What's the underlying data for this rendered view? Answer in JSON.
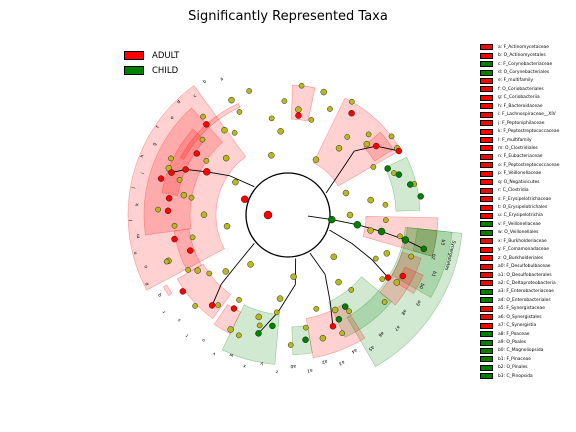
{
  "title": "Significantly Represented Taxa",
  "colors": {
    "ADULT": "#ff0000",
    "CHILD": "#008000",
    "node_default": "#b8b820"
  },
  "class_legend": [
    {
      "name": "ADULT",
      "color": "#ff0000"
    },
    {
      "name": "CHILD",
      "color": "#008000"
    }
  ],
  "taxa_legend": [
    {
      "label": "a: F_Actinomycetaceae",
      "group": "ADULT"
    },
    {
      "label": "b: O_Actinomycetales",
      "group": "ADULT"
    },
    {
      "label": "c: F_Corynebacteriaceae",
      "group": "CHILD"
    },
    {
      "label": "d: O_Corynebacteriales",
      "group": "CHILD"
    },
    {
      "label": "e: F_multifamily",
      "group": "ADULT"
    },
    {
      "label": "f: O_Coriobacteriales",
      "group": "ADULT"
    },
    {
      "label": "g: C_Coriobacteriia",
      "group": "ADULT"
    },
    {
      "label": "h: F_Bacteroidaceae",
      "group": "ADULT"
    },
    {
      "label": "i: F_Lachnospiraceae__XIV",
      "group": "ADULT"
    },
    {
      "label": "j: F_Peptoniphilaceae",
      "group": "ADULT"
    },
    {
      "label": "k: F_Peptostreptococcaceae",
      "group": "ADULT"
    },
    {
      "label": "l: F_multifamily",
      "group": "ADULT"
    },
    {
      "label": "m: O_Clostridiales",
      "group": "ADULT"
    },
    {
      "label": "n: F_Eubacteriaceae",
      "group": "ADULT"
    },
    {
      "label": "o: F_Peptostreptococcaceae",
      "group": "ADULT"
    },
    {
      "label": "p: F_Veillonellaceae",
      "group": "ADULT"
    },
    {
      "label": "q: O_Negativicutes",
      "group": "ADULT"
    },
    {
      "label": "r: C_Clostridia",
      "group": "ADULT"
    },
    {
      "label": "s: F_Erysipelotrichaceae",
      "group": "ADULT"
    },
    {
      "label": "t: O_Erysipelotrichales",
      "group": "ADULT"
    },
    {
      "label": "u: C_Erysipelotrichia",
      "group": "ADULT"
    },
    {
      "label": "v: F_Veillonellaceae",
      "group": "CHILD"
    },
    {
      "label": "w: O_Veillonellales",
      "group": "CHILD"
    },
    {
      "label": "x: F_Burkholderiaceae",
      "group": "ADULT"
    },
    {
      "label": "y: F_Comamonadaceae",
      "group": "ADULT"
    },
    {
      "label": "z: O_Burkholderiales",
      "group": "ADULT"
    },
    {
      "label": "a0: F_Desulfobulbaceae",
      "group": "ADULT"
    },
    {
      "label": "a1: O_Desulfobacterales",
      "group": "ADULT"
    },
    {
      "label": "a2: C_Deltaproteobacteria",
      "group": "ADULT"
    },
    {
      "label": "a3: F_Enterobacteriaceae",
      "group": "CHILD"
    },
    {
      "label": "a4: O_Enterobacteriales",
      "group": "CHILD"
    },
    {
      "label": "a5: F_Synergistaceae",
      "group": "ADULT"
    },
    {
      "label": "a6: O_Synergistales",
      "group": "ADULT"
    },
    {
      "label": "a7: C_Synergistia",
      "group": "ADULT"
    },
    {
      "label": "a8: F_Poaceae",
      "group": "CHILD"
    },
    {
      "label": "a9: O_Poales",
      "group": "CHILD"
    },
    {
      "label": "b0: C_Magnoliopsida",
      "group": "CHILD"
    },
    {
      "label": "b1: F_Pinaceae",
      "group": "CHILD"
    },
    {
      "label": "b2: O_Pinales",
      "group": "CHILD"
    },
    {
      "label": "b3: C_Pinopsida",
      "group": "CHILD"
    }
  ],
  "clade_labels": [
    {
      "id": "a",
      "group": "ADULT"
    },
    {
      "id": "b",
      "group": "ADULT"
    },
    {
      "id": "c",
      "group": "CHILD"
    },
    {
      "id": "d",
      "group": "CHILD"
    },
    {
      "id": "e",
      "group": "ADULT"
    },
    {
      "id": "f",
      "group": "ADULT"
    },
    {
      "id": "g",
      "group": "ADULT"
    },
    {
      "id": "h",
      "group": "ADULT"
    },
    {
      "id": "i",
      "group": "ADULT"
    },
    {
      "id": "j",
      "group": "ADULT"
    },
    {
      "id": "k",
      "group": "ADULT"
    },
    {
      "id": "l",
      "group": "ADULT"
    },
    {
      "id": "m",
      "group": "ADULT"
    },
    {
      "id": "n",
      "group": "ADULT"
    },
    {
      "id": "o",
      "group": "ADULT"
    },
    {
      "id": "p",
      "group": "ADULT"
    },
    {
      "id": "q",
      "group": "ADULT"
    },
    {
      "id": "r",
      "group": "ADULT"
    },
    {
      "id": "s",
      "group": "ADULT"
    },
    {
      "id": "t",
      "group": "ADULT"
    },
    {
      "id": "u",
      "group": "ADULT"
    },
    {
      "id": "v",
      "group": "CHILD"
    },
    {
      "id": "w",
      "group": "CHILD"
    },
    {
      "id": "x",
      "group": "ADULT"
    },
    {
      "id": "y",
      "group": "ADULT"
    },
    {
      "id": "z",
      "group": "ADULT"
    },
    {
      "id": "a0",
      "group": "ADULT"
    },
    {
      "id": "a1",
      "group": "ADULT"
    },
    {
      "id": "a2",
      "group": "ADULT"
    },
    {
      "id": "a3",
      "group": "CHILD"
    },
    {
      "id": "a4",
      "group": "CHILD"
    },
    {
      "id": "a5",
      "group": "ADULT"
    },
    {
      "id": "a6",
      "group": "ADULT"
    },
    {
      "id": "a7",
      "group": "ADULT"
    },
    {
      "id": "a8",
      "group": "CHILD"
    },
    {
      "id": "a9",
      "group": "CHILD"
    },
    {
      "id": "b0",
      "group": "CHILD"
    },
    {
      "id": "b1",
      "group": "CHILD"
    },
    {
      "id": "b2",
      "group": "CHILD"
    },
    {
      "id": "b3",
      "group": "CHILD"
    }
  ],
  "rim_labels": [
    "Synergistetes"
  ]
}
